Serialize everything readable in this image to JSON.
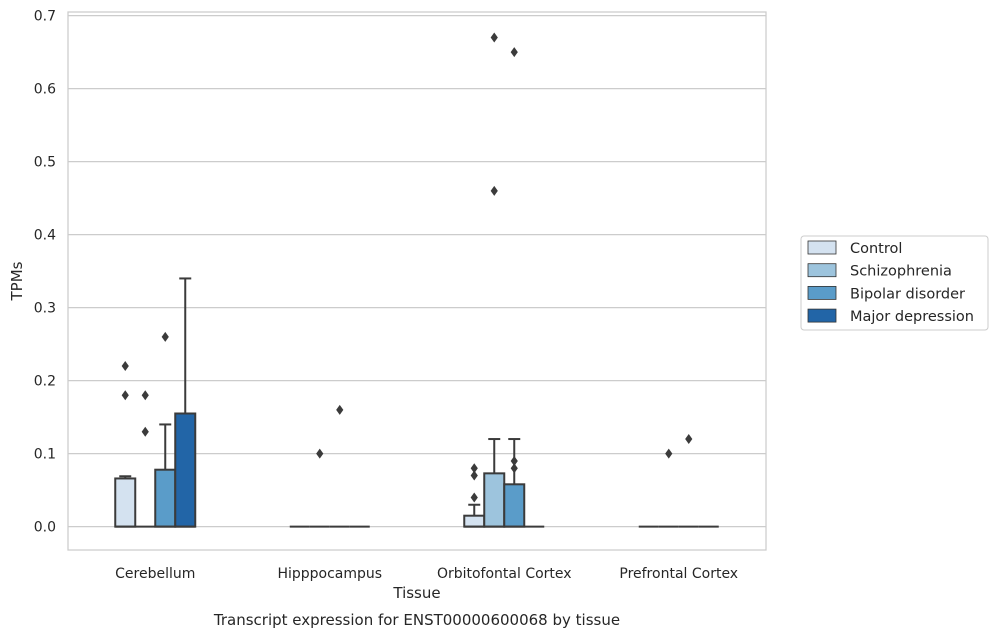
{
  "chart_data": {
    "type": "box",
    "xlabel": "Tissue",
    "ylabel": "TPMs",
    "caption": "Transcript expression for ENST00000600068 by tissue",
    "categories": [
      "Cerebellum",
      "Hipppocampus",
      "Orbitofontal Cortex",
      "Prefrontal Cortex"
    ],
    "ylim": [
      -0.032,
      0.705
    ],
    "yticks": [
      0.0,
      0.1,
      0.2,
      0.3,
      0.4,
      0.5,
      0.6,
      0.7
    ],
    "ytick_labels": [
      "0.0",
      "0.1",
      "0.2",
      "0.3",
      "0.4",
      "0.5",
      "0.6",
      "0.7"
    ],
    "grid": "horizontal",
    "legend_placement": "right",
    "series": [
      {
        "name": "Control",
        "color": "#d4e2f0",
        "boxes": [
          {
            "q1": 0.0,
            "median": 0.0,
            "q3": 0.066,
            "whisker_low": 0.0,
            "whisker_high": 0.069,
            "outliers": [
              0.18,
              0.22
            ]
          },
          {
            "q1": 0.0,
            "median": 0.0,
            "q3": 0.0,
            "whisker_low": 0.0,
            "whisker_high": 0.0,
            "outliers": []
          },
          {
            "q1": 0.0,
            "median": 0.0,
            "q3": 0.015,
            "whisker_low": 0.0,
            "whisker_high": 0.03,
            "outliers": [
              0.04,
              0.07,
              0.08
            ]
          },
          {
            "q1": 0.0,
            "median": 0.0,
            "q3": 0.0,
            "whisker_low": 0.0,
            "whisker_high": 0.0,
            "outliers": []
          }
        ]
      },
      {
        "name": "Schizophrenia",
        "color": "#9dc4dd",
        "boxes": [
          {
            "q1": 0.0,
            "median": 0.0,
            "q3": 0.0,
            "whisker_low": 0.0,
            "whisker_high": 0.0,
            "outliers": [
              0.13,
              0.18
            ]
          },
          {
            "q1": 0.0,
            "median": 0.0,
            "q3": 0.0,
            "whisker_low": 0.0,
            "whisker_high": 0.0,
            "outliers": [
              0.1
            ]
          },
          {
            "q1": 0.0,
            "median": 0.0,
            "q3": 0.073,
            "whisker_low": 0.0,
            "whisker_high": 0.12,
            "outliers": [
              0.46,
              0.67
            ]
          },
          {
            "q1": 0.0,
            "median": 0.0,
            "q3": 0.0,
            "whisker_low": 0.0,
            "whisker_high": 0.0,
            "outliers": [
              0.1
            ]
          }
        ]
      },
      {
        "name": "Bipolar disorder",
        "color": "#5a9cc9",
        "boxes": [
          {
            "q1": 0.0,
            "median": 0.0,
            "q3": 0.078,
            "whisker_low": 0.0,
            "whisker_high": 0.14,
            "outliers": [
              0.26
            ]
          },
          {
            "q1": 0.0,
            "median": 0.0,
            "q3": 0.0,
            "whisker_low": 0.0,
            "whisker_high": 0.0,
            "outliers": [
              0.16
            ]
          },
          {
            "q1": 0.0,
            "median": 0.0,
            "q3": 0.058,
            "whisker_low": 0.0,
            "whisker_high": 0.12,
            "outliers": [
              0.08,
              0.09,
              0.65
            ]
          },
          {
            "q1": 0.0,
            "median": 0.0,
            "q3": 0.0,
            "whisker_low": 0.0,
            "whisker_high": 0.0,
            "outliers": [
              0.12
            ]
          }
        ]
      },
      {
        "name": "Major depression",
        "color": "#2265a7",
        "boxes": [
          {
            "q1": 0.0,
            "median": 0.0,
            "q3": 0.155,
            "whisker_low": 0.0,
            "whisker_high": 0.34,
            "outliers": []
          },
          {
            "q1": 0.0,
            "median": 0.0,
            "q3": 0.0,
            "whisker_low": 0.0,
            "whisker_high": 0.0,
            "outliers": []
          },
          {
            "q1": 0.0,
            "median": 0.0,
            "q3": 0.0,
            "whisker_low": 0.0,
            "whisker_high": 0.0,
            "outliers": []
          },
          {
            "q1": 0.0,
            "median": 0.0,
            "q3": 0.0,
            "whisker_low": 0.0,
            "whisker_high": 0.0,
            "outliers": []
          }
        ]
      }
    ]
  }
}
